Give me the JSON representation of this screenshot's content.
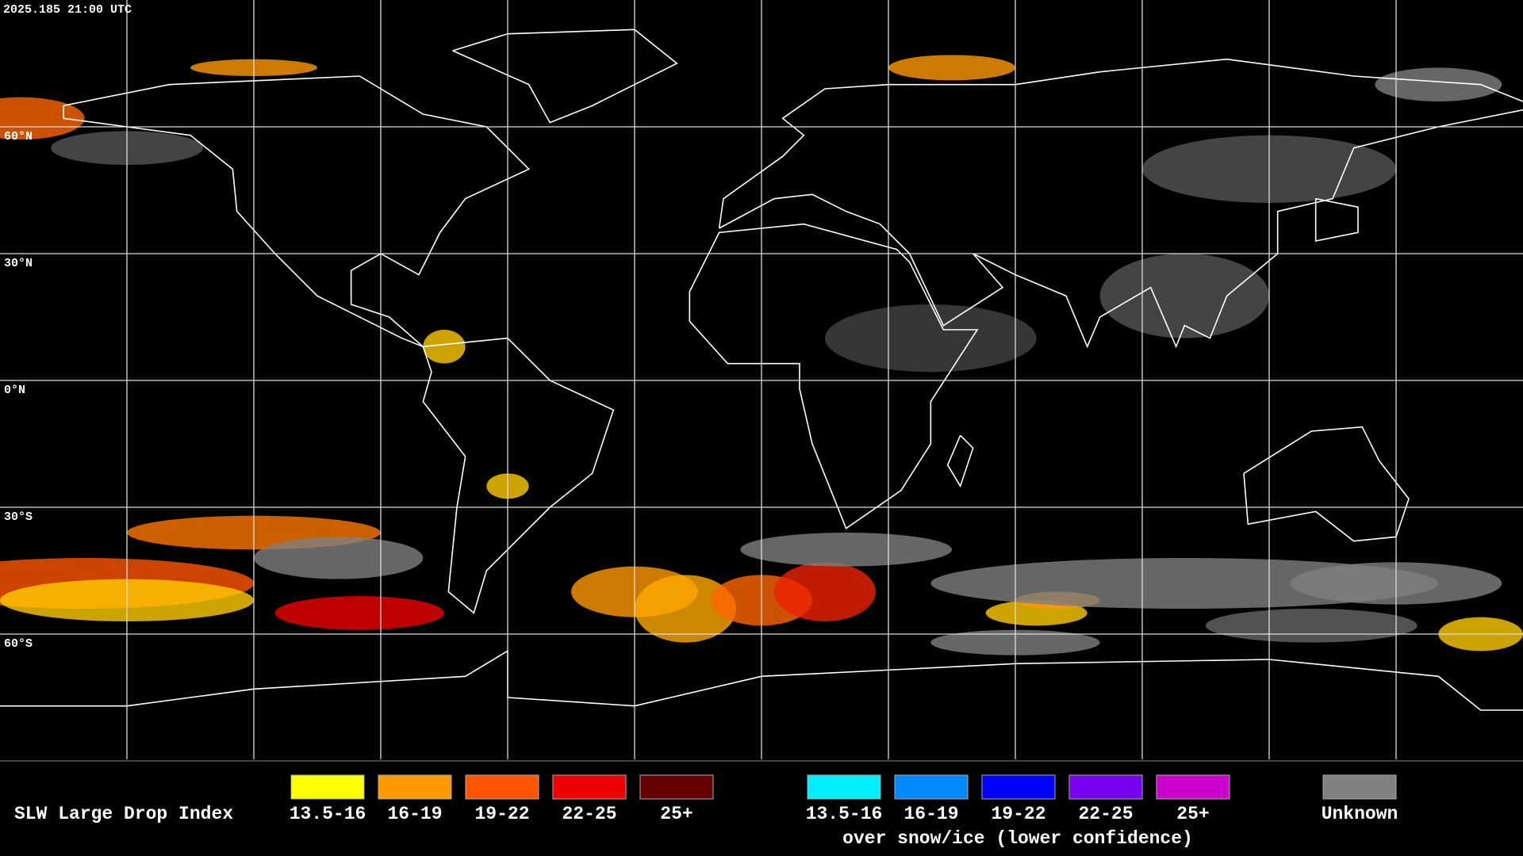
{
  "header": {
    "timestamp": "2025.185 21:00 UTC"
  },
  "map": {
    "lat_labels": [
      "60°N",
      "30°N",
      "0°N",
      "30°S",
      "60°S"
    ]
  },
  "legend": {
    "title": "SLW Large Drop Index",
    "items": [
      {
        "label": "13.5-16",
        "color": "#ffff00"
      },
      {
        "label": "16-19",
        "color": "#ff9900"
      },
      {
        "label": "19-22",
        "color": "#ff5500"
      },
      {
        "label": "22-25",
        "color": "#ee0000"
      },
      {
        "label": "25+",
        "color": "#660000"
      }
    ],
    "snow_items": [
      {
        "label": "13.5-16",
        "color": "#00eeff"
      },
      {
        "label": "16-19",
        "color": "#0088ff"
      },
      {
        "label": "19-22",
        "color": "#0000ff"
      },
      {
        "label": "22-25",
        "color": "#7700ee"
      },
      {
        "label": "25+",
        "color": "#cc00cc"
      }
    ],
    "snow_caption": "over snow/ice (lower confidence)",
    "unknown": {
      "label": "Unknown",
      "color": "#808080"
    }
  }
}
